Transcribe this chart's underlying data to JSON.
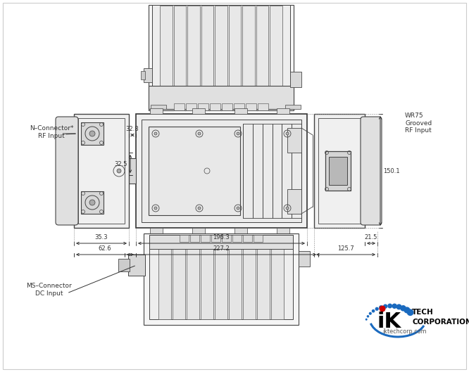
{
  "bg_color": "#ffffff",
  "line_color": "#444444",
  "dim_color": "#333333",
  "annotations": {
    "n_connector": "N–Connector*\nRF Input",
    "wr75": "WR75\nGrooved\nRF Input",
    "ms_connector": "MS–Connector\nDC Input"
  },
  "dimensions": {
    "d32_8": "32.8",
    "d32_5": "32.5",
    "d35_3": "35.3",
    "d62_6": "62.6",
    "d196_3": "196.3",
    "d227_2": "227.2",
    "d150_1": "150.1",
    "d21_5": "21.5",
    "d125_7": "125.7"
  },
  "logo": {
    "text_ik": "iK",
    "text_tech": "TECH\nCORPORATION",
    "text_url": "iktechcorp.com",
    "blue_arc_color": "#1a6abf",
    "red_dot_color": "#cc0000",
    "blue_dots_color": "#1a6abf",
    "black_color": "#000000"
  }
}
